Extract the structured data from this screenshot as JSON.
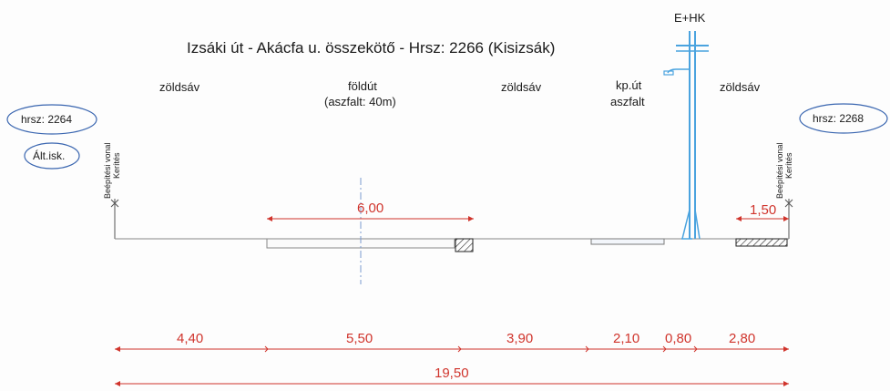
{
  "title": "Izsáki út - Akácfa u. összekötő - Hrsz: 2266 (Kisizsák)",
  "pole_label": "E+HK",
  "strips": {
    "zoldsav_left": "zöldsáv",
    "foldut": "földút",
    "foldut_note": "(aszfalt: 40m)",
    "zoldsav_mid": "zöldsáv",
    "kput_line1": "kp.út",
    "kput_line2": "aszfalt",
    "zoldsav_right": "zöldsáv"
  },
  "parcels": {
    "left": "hrsz: 2264",
    "right": "hrsz: 2268",
    "school": "Ált.isk."
  },
  "boundary": {
    "line1": "Beépítési vonal",
    "line2": "Kerítés"
  },
  "dimensions": {
    "upper_road": "6,00",
    "upper_right": "1,50",
    "segments": [
      "4,40",
      "5,50",
      "3,90",
      "2,10",
      "0,80",
      "2,80"
    ],
    "total": "19,50"
  },
  "colors": {
    "dimension": "#d0342c",
    "pole": "#4aa3df",
    "ellipse": "#3a66b0"
  }
}
